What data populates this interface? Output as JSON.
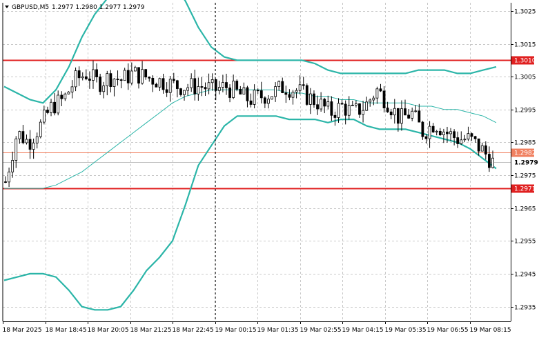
{
  "header": {
    "symbol": "GBPUSD,M5",
    "ohlc": "1.2977 1.2980 1.2977 1.2979"
  },
  "chart_data": {
    "type": "candlestick",
    "ylim": [
      1.29305,
      1.30275
    ],
    "y_ticks": [
      "1.3025",
      "1.3015",
      "1.3005",
      "1.2995",
      "1.2985",
      "1.2975",
      "1.2965",
      "1.2955",
      "1.2945",
      "1.2935"
    ],
    "x_ticks": [
      "18 Mar 2025",
      "18 Mar 18:45",
      "18 Mar 20:05",
      "18 Mar 21:25",
      "18 Mar 22:45",
      "19 Mar 00:15",
      "19 Mar 01:35",
      "19 Mar 02:55",
      "19 Mar 04:15",
      "19 Mar 05:35",
      "19 Mar 06:55",
      "19 Mar 08:15"
    ],
    "horizontal_levels": [
      {
        "value": 1.301,
        "label": "1.3010",
        "color": "#e02020"
      },
      {
        "value": 1.2982,
        "label": "1.2982",
        "color": "#f08060"
      },
      {
        "value": 1.2971,
        "label": "1.2971",
        "color": "#e02020"
      }
    ],
    "current_price": {
      "value": 1.2979,
      "label": "1.2979",
      "line_color": "#c0c0c0"
    },
    "bollinger": {
      "upper": [
        1.3002,
        1.3,
        1.2998,
        1.2997,
        1.3001,
        1.3008,
        1.3017,
        1.3024,
        1.3029,
        1.3031,
        1.3033,
        1.3034,
        1.3035,
        1.3034,
        1.3028,
        1.302,
        1.3014,
        1.3011,
        1.301,
        1.301,
        1.301,
        1.301,
        1.301,
        1.301,
        1.3009,
        1.3007,
        1.3006,
        1.3006,
        1.3006,
        1.3006,
        1.3006,
        1.3006,
        1.3007,
        1.3007,
        1.3007,
        1.3006,
        1.3006,
        1.3007,
        1.3008
      ],
      "middle": [
        1.2971,
        1.2971,
        1.2971,
        1.2971,
        1.2972,
        1.2974,
        1.2976,
        1.2979,
        1.2982,
        1.2985,
        1.2988,
        1.2991,
        1.2994,
        1.2997,
        1.2999,
        1.3,
        1.3001,
        1.3001,
        1.3001,
        1.3001,
        1.3001,
        1.3001,
        1.3,
        1.3,
        1.2999,
        1.2999,
        1.2998,
        1.2998,
        1.2997,
        1.2997,
        1.2997,
        1.2997,
        1.2996,
        1.2996,
        1.2995,
        1.2995,
        1.2994,
        1.2993,
        1.2991
      ],
      "lower": [
        1.2943,
        1.2944,
        1.2945,
        1.2945,
        1.2944,
        1.294,
        1.2935,
        1.2934,
        1.2934,
        1.2935,
        1.294,
        1.2946,
        1.295,
        1.2955,
        1.2966,
        1.2978,
        1.2984,
        1.299,
        1.2993,
        1.2993,
        1.2993,
        1.2993,
        1.2992,
        1.2992,
        1.2992,
        1.2991,
        1.2992,
        1.2992,
        1.299,
        1.2989,
        1.2989,
        1.2989,
        1.2988,
        1.2987,
        1.2986,
        1.2985,
        1.2983,
        1.298,
        1.2977
      ]
    },
    "candles_close": [
      1.2973,
      1.2988,
      1.2985,
      1.299,
      1.2996,
      1.2998,
      1.3004,
      1.3006,
      1.3003,
      1.3005,
      1.3004,
      1.3006,
      1.3005,
      1.3004,
      1.3003,
      1.3002,
      1.3002,
      1.3002,
      1.3001,
      1.3002,
      1.3,
      1.2998,
      1.2999,
      1.3,
      1.3002,
      1.3001,
      1.2999,
      1.2997,
      1.2994,
      1.2996,
      1.2994,
      1.2996,
      1.3001,
      1.2997,
      1.2992,
      1.2994,
      1.2988,
      1.2991,
      1.2988,
      1.2986,
      1.2986,
      1.2983,
      1.2979
    ]
  }
}
